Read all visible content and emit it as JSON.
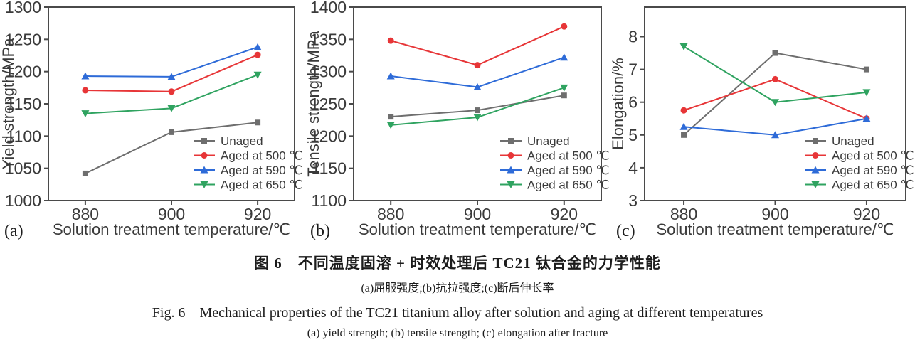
{
  "figure": {
    "caption_cn_title": "图 6　不同温度固溶 + 时效处理后 TC21 钛合金的力学性能",
    "caption_cn_sub": "(a)屈服强度;(b)抗拉强度;(c)断后伸长率",
    "caption_en_title": "Fig. 6　Mechanical properties of the TC21 titanium alloy after solution and aging at different temperatures",
    "caption_en_sub": "(a) yield strength; (b) tensile strength; (c) elongation after fracture"
  },
  "colors": {
    "unaged": "#6e6e6e",
    "aged500": "#e73537",
    "aged590": "#2e6bd8",
    "aged650": "#2fa360",
    "axis": "#4a4a4a",
    "text": "#3a3a3a"
  },
  "chart_data": [
    {
      "type": "line",
      "panel_label": "(a)",
      "xlabel": "Solution treatment temperature/℃",
      "ylabel": "Yield strength/MPa",
      "x": [
        880,
        900,
        920
      ],
      "xticks": [
        "880",
        "900",
        "920"
      ],
      "ylim": [
        1000,
        1300
      ],
      "yticks": [
        1000,
        1050,
        1100,
        1150,
        1200,
        1250,
        1300
      ],
      "grid": false,
      "legend_position": "bottom-right",
      "series": [
        {
          "name": "Unaged",
          "marker": "square",
          "color": "#6e6e6e",
          "values": [
            1042,
            1106,
            1121
          ]
        },
        {
          "name": "Aged at 500 ℃",
          "marker": "circle",
          "color": "#e73537",
          "values": [
            1171,
            1169,
            1226
          ]
        },
        {
          "name": "Aged at 590 ℃",
          "marker": "triangle-up",
          "color": "#2e6bd8",
          "values": [
            1193,
            1192,
            1238
          ]
        },
        {
          "name": "Aged at 650 ℃",
          "marker": "triangle-down",
          "color": "#2fa360",
          "values": [
            1135,
            1143,
            1195
          ]
        }
      ]
    },
    {
      "type": "line",
      "panel_label": "(b)",
      "xlabel": "Solution treatment temperature/℃",
      "ylabel": "Tensile strength/MPa",
      "x": [
        880,
        900,
        920
      ],
      "xticks": [
        "880",
        "900",
        "920"
      ],
      "ylim": [
        1100,
        1400
      ],
      "yticks": [
        1100,
        1150,
        1200,
        1250,
        1300,
        1350,
        1400
      ],
      "grid": false,
      "legend_position": "bottom-right",
      "series": [
        {
          "name": "Unaged",
          "marker": "square",
          "color": "#6e6e6e",
          "values": [
            1230,
            1240,
            1263
          ]
        },
        {
          "name": "Aged at 500 ℃",
          "marker": "circle",
          "color": "#e73537",
          "values": [
            1348,
            1310,
            1370
          ]
        },
        {
          "name": "Aged at 590 ℃",
          "marker": "triangle-up",
          "color": "#2e6bd8",
          "values": [
            1293,
            1276,
            1322
          ]
        },
        {
          "name": "Aged at 650 ℃",
          "marker": "triangle-down",
          "color": "#2fa360",
          "values": [
            1217,
            1229,
            1275
          ]
        }
      ]
    },
    {
      "type": "line",
      "panel_label": "(c)",
      "xlabel": "Solution treatment temperature/℃",
      "ylabel": "Elongation/%",
      "x": [
        880,
        900,
        920
      ],
      "xticks": [
        "880",
        "900",
        "920"
      ],
      "ylim": [
        3,
        8.9
      ],
      "yticks": [
        3,
        4,
        5,
        6,
        7,
        8
      ],
      "grid": false,
      "legend_position": "bottom-right",
      "series": [
        {
          "name": "Unaged",
          "marker": "square",
          "color": "#6e6e6e",
          "values": [
            5.0,
            7.5,
            7.0
          ]
        },
        {
          "name": "Aged at 500 ℃",
          "marker": "circle",
          "color": "#e73537",
          "values": [
            5.75,
            6.7,
            5.5
          ]
        },
        {
          "name": "Aged at 590 ℃",
          "marker": "triangle-up",
          "color": "#2e6bd8",
          "values": [
            5.25,
            5.0,
            5.5
          ]
        },
        {
          "name": "Aged at 650 ℃",
          "marker": "triangle-down",
          "color": "#2fa360",
          "values": [
            7.7,
            6.0,
            6.3
          ]
        }
      ]
    }
  ]
}
